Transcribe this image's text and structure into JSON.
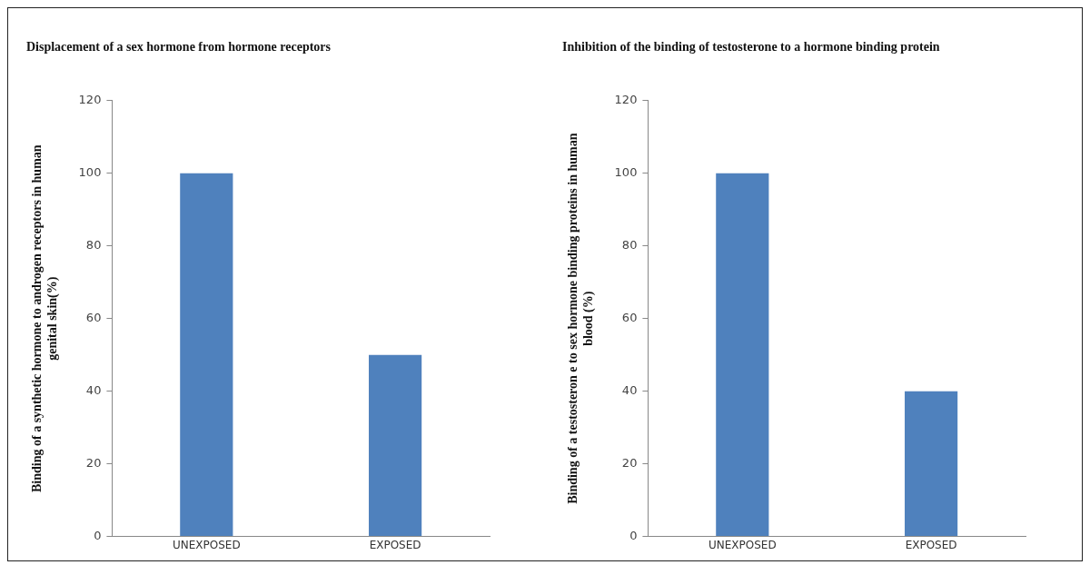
{
  "chart_data": [
    {
      "type": "bar",
      "title": "Displacement of a sex hormone from hormone receptors",
      "ylabel": "Binding of a synthetic hormone to androgen receptors in human genital skin(%)",
      "categories": [
        "UNEXPOSED",
        "EXPOSED"
      ],
      "values": [
        100,
        50
      ],
      "color": "#4f81bd",
      "ylim": [
        0,
        120
      ],
      "yticks": [
        0,
        20,
        40,
        60,
        80,
        100,
        120
      ],
      "grid": false,
      "legend": false
    },
    {
      "type": "bar",
      "title": "Inhibition of the binding of testosterone to a hormone binding protein",
      "ylabel": "Binding of a testosteron e to sex hormone binding proteins in human blood (%)",
      "categories": [
        "UNEXPOSED",
        "EXPOSED"
      ],
      "values": [
        100,
        40
      ],
      "color": "#4f81bd",
      "ylim": [
        0,
        120
      ],
      "yticks": [
        0,
        20,
        40,
        60,
        80,
        100,
        120
      ],
      "grid": false,
      "legend": false
    }
  ]
}
